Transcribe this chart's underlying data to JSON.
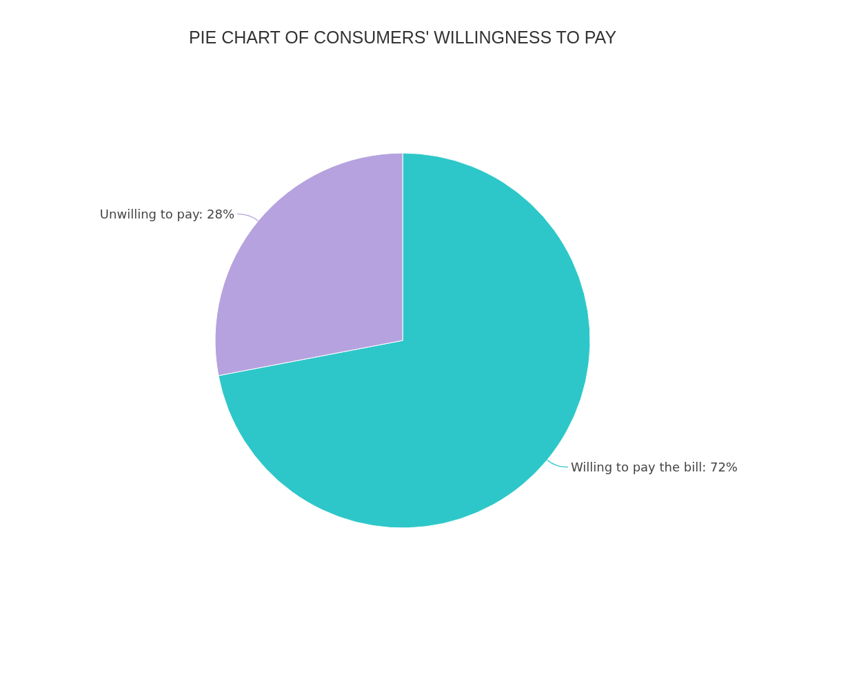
{
  "chart_data": {
    "type": "pie",
    "title": "PIE CHART OF CONSUMERS' WILLINGNESS TO PAY",
    "categories": [
      "Willing to pay the bill",
      "Unwilling to pay"
    ],
    "values": [
      72,
      28
    ],
    "colors": [
      "#2ec7c9",
      "#b6a2de"
    ],
    "value_labels": [
      "72%",
      "28%"
    ]
  }
}
